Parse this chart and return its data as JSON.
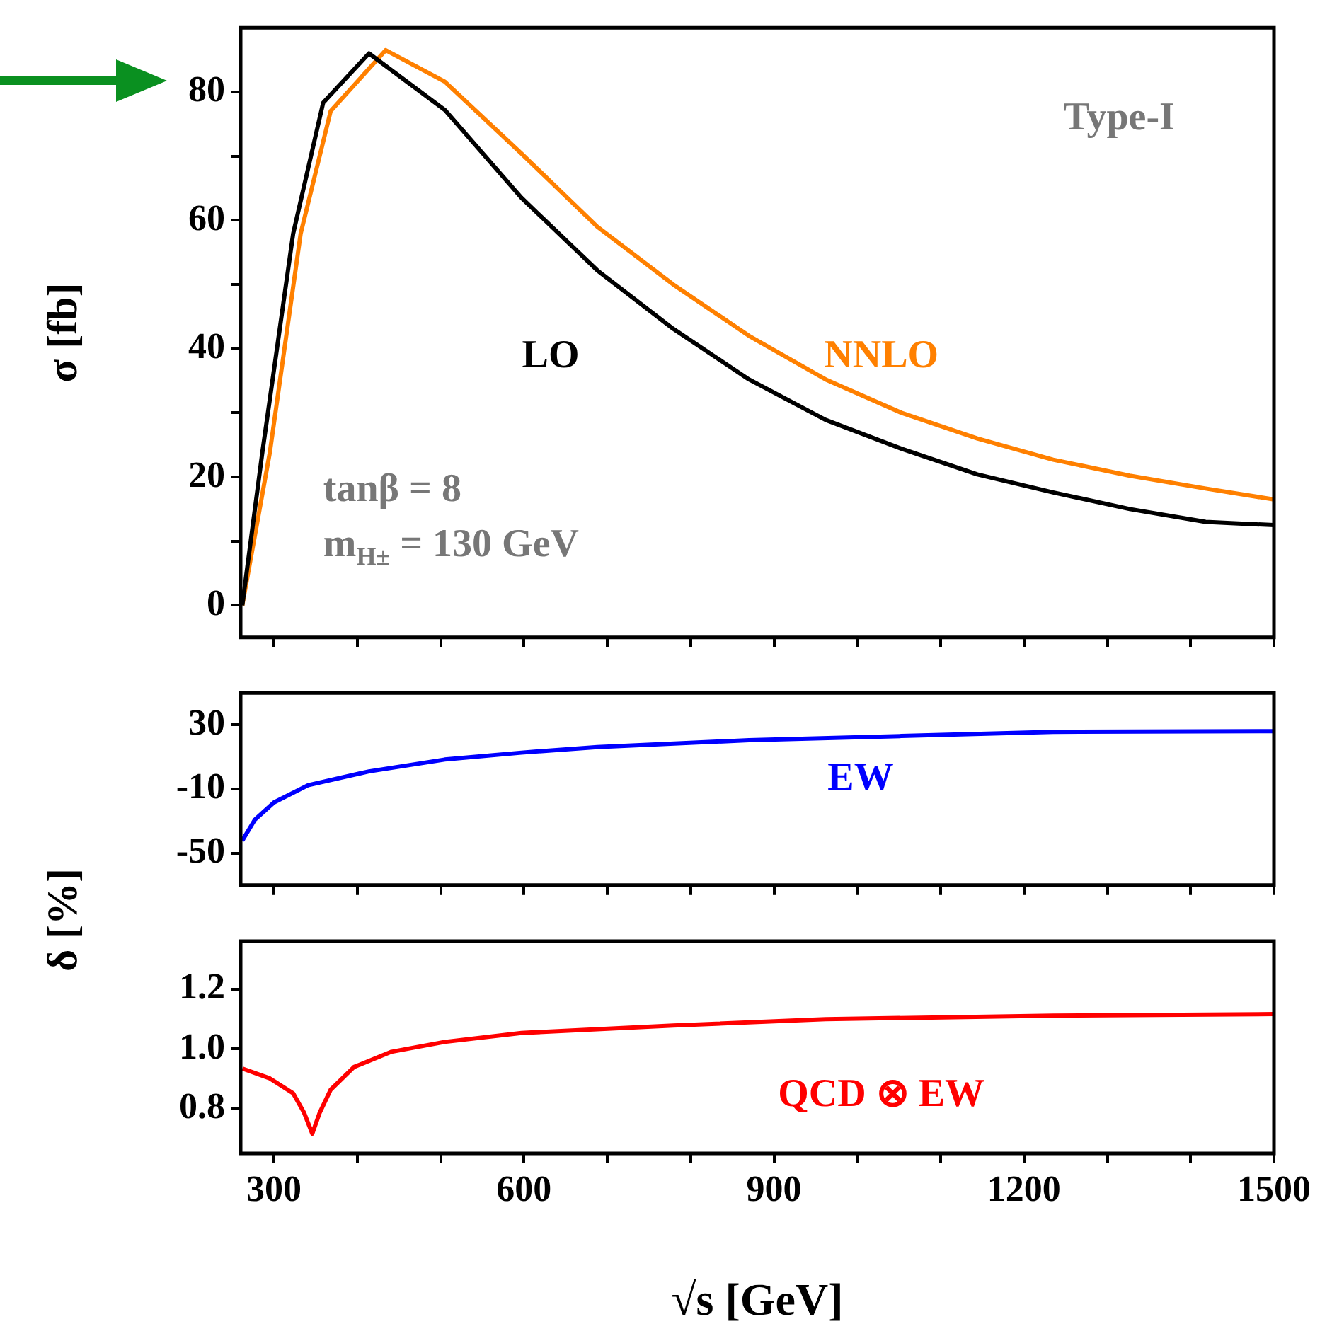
{
  "chart_data": [
    {
      "type": "line",
      "ylabel": "σ [fb]",
      "annotations": [
        "Type-I",
        "tanβ = 8",
        "m$_{H±}$ = 130 GeV"
      ],
      "xlim": [
        260,
        1500
      ],
      "ylim": [
        -5,
        90
      ],
      "tick_labels": "y",
      "xticks": [
        300,
        {
          "value": 400,
          "label": null
        },
        {
          "value": 500,
          "label": null
        },
        600,
        {
          "value": 700,
          "label": null
        },
        {
          "value": 800,
          "label": null
        },
        900,
        {
          "value": 1000,
          "label": null
        },
        {
          "value": 1100,
          "label": null
        },
        1200,
        {
          "value": 1300,
          "label": null
        },
        {
          "value": 1400,
          "label": null
        },
        1500
      ],
      "yticks": [
        0,
        {
          "value": 10,
          "label": null
        },
        20,
        {
          "value": 30,
          "label": null
        },
        40,
        {
          "value": 50,
          "label": null
        },
        60,
        {
          "value": 70,
          "label": null
        },
        80
      ],
      "series": [
        {
          "name": "LO",
          "color": "#000000",
          "x": [
            262,
            286,
            323,
            359,
            414,
            505,
            597,
            688,
            779,
            870,
            962,
            1053,
            1144,
            1235,
            1327,
            1418,
            1500
          ],
          "values": [
            0,
            23.8,
            57.9,
            78.3,
            86,
            77.2,
            63.5,
            52.2,
            43.1,
            35.2,
            28.9,
            24.4,
            20.4,
            17.6,
            15,
            13,
            12.5
          ]
        },
        {
          "name": "NNLO",
          "color": "#ff8000",
          "x": [
            262,
            295,
            332,
            368,
            434,
            505,
            597,
            688,
            779,
            870,
            962,
            1053,
            1144,
            1235,
            1327,
            1418,
            1500
          ],
          "values": [
            0,
            23.8,
            57.9,
            77,
            86.5,
            81.6,
            70.4,
            59,
            50,
            42,
            35.2,
            30,
            26,
            22.7,
            20.2,
            18.2,
            16.5
          ]
        }
      ]
    },
    {
      "type": "line",
      "ylabel": "δ [%]",
      "xlim": [
        260,
        1500
      ],
      "ylim": [
        -70,
        50
      ],
      "tick_labels": "y",
      "xticks": [
        300,
        {
          "value": 400,
          "label": null
        },
        {
          "value": 500,
          "label": null
        },
        600,
        {
          "value": 700,
          "label": null
        },
        {
          "value": 800,
          "label": null
        },
        900,
        {
          "value": 1000,
          "label": null
        },
        {
          "value": 1100,
          "label": null
        },
        1200,
        {
          "value": 1300,
          "label": null
        },
        {
          "value": 1400,
          "label": null
        },
        1500
      ],
      "yticks": [
        -50,
        -10,
        30
      ],
      "series": [
        {
          "name": "EW",
          "color": "#0000ff",
          "x": [
            262,
            277,
            300,
            341,
            414,
            505,
            597,
            688,
            870,
            1053,
            1235,
            1500
          ],
          "values": [
            -42.2,
            -29.2,
            -18.4,
            -7.6,
            1,
            8.4,
            12.7,
            16.2,
            20.5,
            23.1,
            25.7,
            26.1
          ]
        }
      ]
    },
    {
      "type": "line",
      "xlabel": "√s [GeV]",
      "xlim": [
        260,
        1500
      ],
      "ylim": [
        0.65,
        1.36
      ],
      "xticks": [
        300,
        {
          "value": 400,
          "label": null
        },
        {
          "value": 500,
          "label": null
        },
        600,
        {
          "value": 700,
          "label": null
        },
        {
          "value": 800,
          "label": null
        },
        900,
        {
          "value": 1000,
          "label": null
        },
        {
          "value": 1100,
          "label": null
        },
        1200,
        {
          "value": 1300,
          "label": null
        },
        {
          "value": 1400,
          "label": null
        },
        1500
      ],
      "yticks": [
        0.8,
        {
          "value": 1,
          "label": "1.0"
        },
        1.2
      ],
      "series": [
        {
          "name": "QCD ⊗ EW",
          "color": "#ff0000",
          "x": [
            262,
            295,
            323,
            336,
            346,
            355,
            368,
            396,
            441,
            505,
            597,
            779,
            962,
            1235,
            1500
          ],
          "values": [
            0.934,
            0.901,
            0.851,
            0.787,
            0.716,
            0.787,
            0.863,
            0.939,
            0.99,
            1.023,
            1.053,
            1.078,
            1.099,
            1.111,
            1.116
          ]
        }
      ]
    }
  ]
}
